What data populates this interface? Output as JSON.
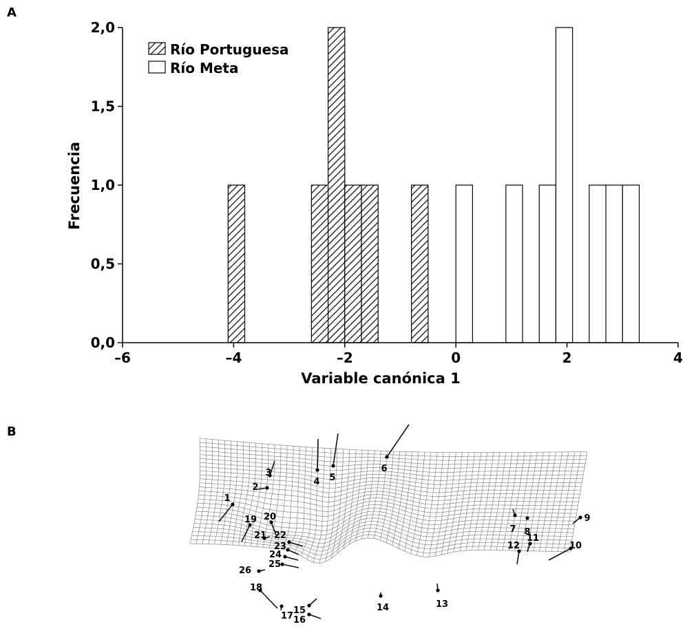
{
  "panels": {
    "a": "A",
    "b": "B"
  },
  "chart_data": {
    "type": "bar",
    "xlabel": "Variable canónica 1",
    "ylabel": "Frecuencia",
    "xlim": [
      -6,
      4
    ],
    "ylim": [
      0,
      2
    ],
    "x_ticks": [
      "–6",
      "–4",
      "–2",
      "0",
      "2",
      "4"
    ],
    "y_ticks": [
      "0,0",
      "0,5",
      "1,0",
      "1,5",
      "2,0"
    ],
    "bin_width": 0.3,
    "legend_position": "top-left",
    "series": [
      {
        "name": "Río Portuguesa",
        "pattern": "hatched",
        "bins": [
          {
            "x_start": -4.1,
            "value": 1
          },
          {
            "x_start": -2.6,
            "value": 1
          },
          {
            "x_start": -2.3,
            "value": 2
          },
          {
            "x_start": -2.0,
            "value": 1
          },
          {
            "x_start": -1.7,
            "value": 1
          },
          {
            "x_start": -0.8,
            "value": 1
          }
        ]
      },
      {
        "name": "Río Meta",
        "pattern": "open",
        "bins": [
          {
            "x_start": 0.0,
            "value": 1
          },
          {
            "x_start": 0.9,
            "value": 1
          },
          {
            "x_start": 1.5,
            "value": 1
          },
          {
            "x_start": 1.8,
            "value": 2
          },
          {
            "x_start": 2.4,
            "value": 1
          },
          {
            "x_start": 2.7,
            "value": 1
          },
          {
            "x_start": 3.0,
            "value": 1
          }
        ]
      }
    ]
  },
  "landmarks": [
    {
      "id": "1"
    },
    {
      "id": "2"
    },
    {
      "id": "3"
    },
    {
      "id": "4"
    },
    {
      "id": "5"
    },
    {
      "id": "6"
    },
    {
      "id": "7"
    },
    {
      "id": "8"
    },
    {
      "id": "9"
    },
    {
      "id": "10"
    },
    {
      "id": "11"
    },
    {
      "id": "12"
    },
    {
      "id": "13"
    },
    {
      "id": "14"
    },
    {
      "id": "15"
    },
    {
      "id": "16"
    },
    {
      "id": "17"
    },
    {
      "id": "18"
    },
    {
      "id": "19"
    },
    {
      "id": "20"
    },
    {
      "id": "21"
    },
    {
      "id": "22"
    },
    {
      "id": "23"
    },
    {
      "id": "24"
    },
    {
      "id": "25"
    },
    {
      "id": "26"
    }
  ]
}
